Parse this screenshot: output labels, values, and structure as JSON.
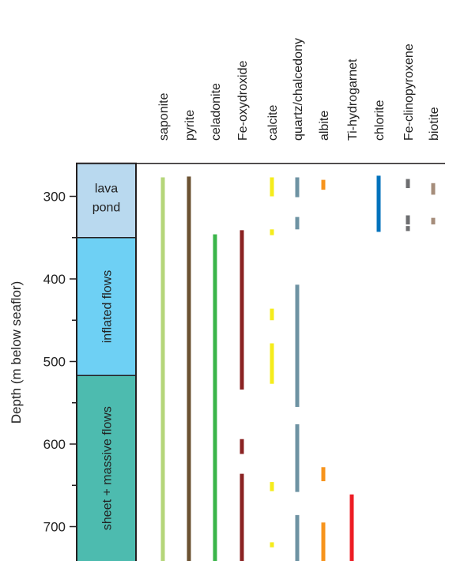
{
  "chart_data": {
    "type": "range-bar",
    "ylabel": "Depth (m below seaflor)",
    "ylim": [
      260,
      745
    ],
    "y_ticks": [
      300,
      400,
      500,
      600,
      700
    ],
    "y_minor_ticks": [
      350,
      450,
      550,
      650
    ],
    "units": [
      {
        "name": "lava\npond",
        "top": 260,
        "bottom": 350,
        "color": "#b9d9ef"
      },
      {
        "name": "inflated flows",
        "top": 350,
        "bottom": 517,
        "color": "#6ed0f4"
      },
      {
        "name": "sheet + massive flows",
        "top": 517,
        "bottom": 745,
        "color": "#4dbbaf"
      }
    ],
    "series": [
      {
        "name": "saponite",
        "color": "#b5d67a",
        "intervals": [
          [
            277,
            745
          ]
        ]
      },
      {
        "name": "pyrite",
        "color": "#6b5232",
        "intervals": [
          [
            276,
            745
          ]
        ]
      },
      {
        "name": "celadonite",
        "color": "#3ab54a",
        "intervals": [
          [
            346,
            745
          ]
        ]
      },
      {
        "name": "Fe-oxydroxide",
        "color": "#8b2323",
        "intervals": [
          [
            341,
            534
          ],
          [
            594,
            612
          ],
          [
            636,
            745
          ]
        ]
      },
      {
        "name": "calcite",
        "color": "#f5ec1c",
        "intervals": [
          [
            277,
            300
          ],
          [
            340,
            347
          ],
          [
            436,
            450
          ],
          [
            478,
            527
          ],
          [
            646,
            657
          ],
          [
            719,
            725
          ]
        ]
      },
      {
        "name": "quartz/chalcedony",
        "color": "#6e93a3",
        "intervals": [
          [
            277,
            301
          ],
          [
            325,
            340
          ],
          [
            407,
            555
          ],
          [
            576,
            658
          ],
          [
            686,
            745
          ]
        ]
      },
      {
        "name": "albite",
        "color": "#f7941d",
        "intervals": [
          [
            280,
            292
          ],
          [
            628,
            645
          ],
          [
            695,
            745
          ]
        ]
      },
      {
        "name": "Ti-hydrogarnet",
        "color": "#ed1c24",
        "intervals": [
          [
            661,
            745
          ]
        ]
      },
      {
        "name": "chlorite",
        "color": "#0072bc",
        "intervals": [
          [
            275,
            343
          ]
        ]
      },
      {
        "name": "Fe-clinopyroxene",
        "color": "#6d6e70",
        "intervals": [
          [
            279,
            290
          ],
          [
            323,
            334
          ],
          [
            336,
            342
          ]
        ]
      },
      {
        "name": "biotite",
        "color": "#a68d7b",
        "intervals": [
          [
            284,
            298
          ],
          [
            326,
            334
          ]
        ]
      }
    ]
  }
}
